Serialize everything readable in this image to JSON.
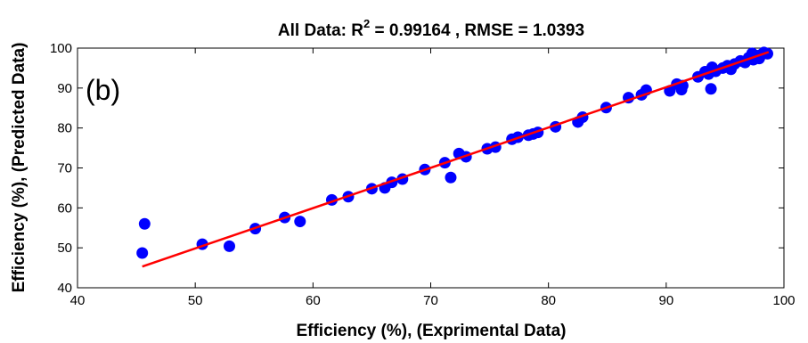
{
  "chart_data": {
    "type": "scatter",
    "title_prefix": "All Data: R",
    "title_sup": "2",
    "title_suffix": " = 0.99164  ,  RMSE = 1.0393",
    "panel_label": "(b)",
    "xlabel": "Efficiency (%),  (Exprimental Data)",
    "ylabel": "Efficiency (%),  (Predicted Data)",
    "xlim": [
      40,
      100
    ],
    "ylim": [
      40,
      100
    ],
    "xticks": [
      40,
      50,
      60,
      70,
      80,
      90,
      100
    ],
    "yticks": [
      40,
      50,
      60,
      70,
      80,
      90,
      100
    ],
    "grid": false,
    "point_color": "#0000ff",
    "fit_color": "#ff0000",
    "points": [
      [
        45.5,
        48.7
      ],
      [
        45.7,
        56.0
      ],
      [
        50.6,
        50.9
      ],
      [
        52.9,
        50.4
      ],
      [
        55.1,
        54.8
      ],
      [
        57.6,
        57.6
      ],
      [
        58.9,
        56.6
      ],
      [
        61.6,
        62.0
      ],
      [
        63.0,
        62.8
      ],
      [
        65.0,
        64.8
      ],
      [
        66.1,
        65.0
      ],
      [
        66.7,
        66.4
      ],
      [
        67.6,
        67.2
      ],
      [
        69.5,
        69.6
      ],
      [
        71.2,
        71.3
      ],
      [
        71.7,
        67.6
      ],
      [
        72.4,
        73.6
      ],
      [
        73.0,
        72.8
      ],
      [
        74.8,
        74.8
      ],
      [
        75.5,
        75.2
      ],
      [
        76.9,
        77.2
      ],
      [
        77.4,
        77.7
      ],
      [
        78.3,
        78.2
      ],
      [
        78.7,
        78.5
      ],
      [
        79.1,
        78.9
      ],
      [
        80.6,
        80.3
      ],
      [
        82.5,
        81.5
      ],
      [
        82.9,
        82.7
      ],
      [
        84.9,
        85.1
      ],
      [
        86.8,
        87.6
      ],
      [
        87.9,
        88.3
      ],
      [
        88.3,
        89.5
      ],
      [
        90.3,
        89.3
      ],
      [
        90.9,
        91.0
      ],
      [
        91.3,
        89.6
      ],
      [
        91.4,
        90.6
      ],
      [
        92.7,
        92.8
      ],
      [
        93.3,
        94.1
      ],
      [
        93.6,
        93.5
      ],
      [
        93.8,
        89.8
      ],
      [
        93.9,
        95.2
      ],
      [
        94.2,
        94.2
      ],
      [
        94.8,
        95.0
      ],
      [
        95.2,
        95.6
      ],
      [
        95.5,
        94.7
      ],
      [
        95.8,
        96.0
      ],
      [
        96.3,
        96.8
      ],
      [
        96.7,
        96.4
      ],
      [
        97.0,
        97.6
      ],
      [
        97.3,
        98.7
      ],
      [
        97.4,
        97.1
      ],
      [
        97.7,
        98.1
      ],
      [
        97.9,
        97.4
      ],
      [
        98.1,
        98.4
      ],
      [
        98.3,
        98.9
      ],
      [
        98.6,
        98.6
      ]
    ],
    "fit_line": {
      "x": [
        45.5,
        98.7
      ],
      "y": [
        45.3,
        99.0
      ]
    }
  }
}
